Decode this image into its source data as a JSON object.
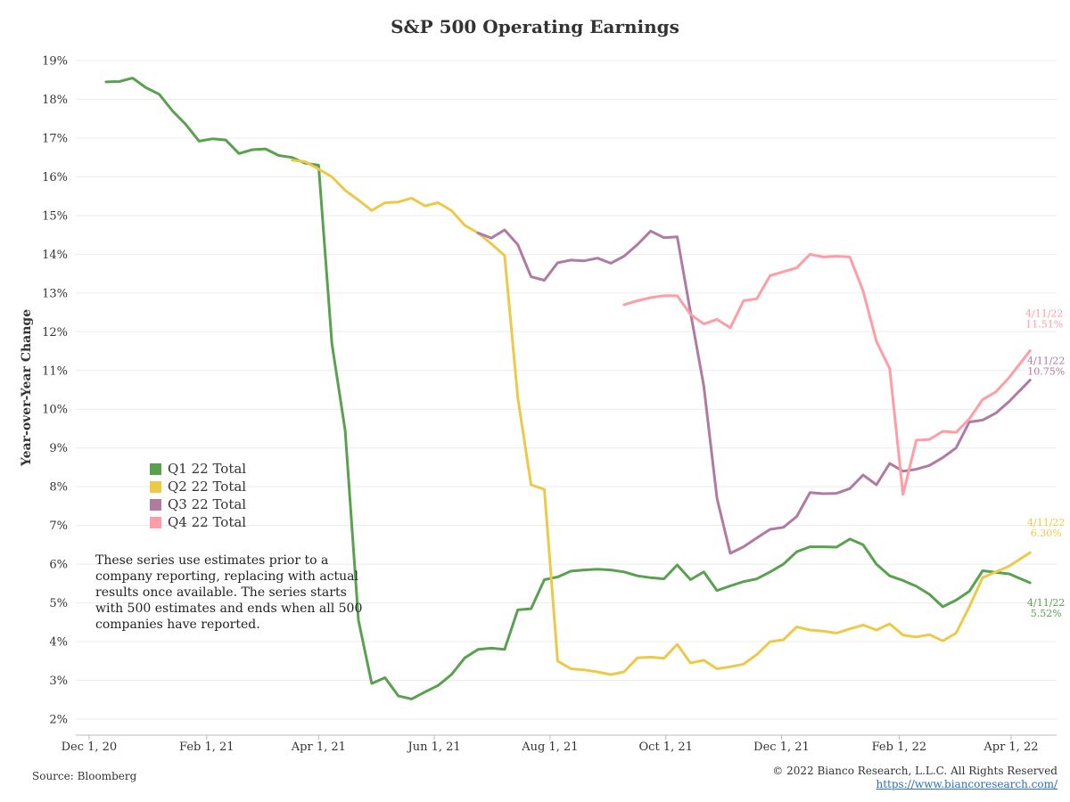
{
  "chart_data": {
    "type": "line",
    "title": "S&P 500 Operating Earnings",
    "ylabel": "Year-over-Year Change",
    "xlabel": "",
    "x_ticks": [
      "Dec 1, 20",
      "Feb 1, 21",
      "Apr 1, 21",
      "Jun 1, 21",
      "Aug 1, 21",
      "Oct 1, 21",
      "Dec 1, 21",
      "Feb 1, 22",
      "Apr 1, 22"
    ],
    "y_ticks": [
      "2%",
      "3%",
      "4%",
      "5%",
      "6%",
      "7%",
      "8%",
      "9%",
      "10%",
      "11%",
      "12%",
      "13%",
      "14%",
      "15%",
      "16%",
      "17%",
      "18%",
      "19%"
    ],
    "ylim": [
      2,
      19
    ],
    "xlim": [
      "2020-11-24",
      "2022-04-25"
    ],
    "grid": true,
    "legend_position": "middle-left",
    "series": [
      {
        "name": "Q1 22 Total",
        "color": "#59a14f",
        "points": [
          [
            "2020-12-10",
            18.45
          ],
          [
            "2020-12-17",
            18.46
          ],
          [
            "2020-12-24",
            18.55
          ],
          [
            "2020-12-31",
            18.3
          ],
          [
            "2021-01-07",
            18.13
          ],
          [
            "2021-01-14",
            17.7
          ],
          [
            "2021-01-21",
            17.35
          ],
          [
            "2021-01-28",
            16.92
          ],
          [
            "2021-02-04",
            16.98
          ],
          [
            "2021-02-11",
            16.95
          ],
          [
            "2021-02-18",
            16.6
          ],
          [
            "2021-02-25",
            16.7
          ],
          [
            "2021-03-04",
            16.72
          ],
          [
            "2021-03-11",
            16.55
          ],
          [
            "2021-03-18",
            16.5
          ],
          [
            "2021-03-25",
            16.35
          ],
          [
            "2021-04-01",
            16.3
          ],
          [
            "2021-04-08",
            11.7
          ],
          [
            "2021-04-15",
            9.45
          ],
          [
            "2021-04-22",
            4.55
          ],
          [
            "2021-04-29",
            2.92
          ],
          [
            "2021-05-06",
            3.07
          ],
          [
            "2021-05-13",
            2.6
          ],
          [
            "2021-05-20",
            2.52
          ],
          [
            "2021-05-27",
            2.7
          ],
          [
            "2021-06-03",
            2.87
          ],
          [
            "2021-06-10",
            3.15
          ],
          [
            "2021-06-17",
            3.58
          ],
          [
            "2021-06-24",
            3.8
          ],
          [
            "2021-07-01",
            3.83
          ],
          [
            "2021-07-08",
            3.8
          ],
          [
            "2021-07-15",
            4.82
          ],
          [
            "2021-07-22",
            4.85
          ],
          [
            "2021-07-29",
            5.6
          ],
          [
            "2021-08-05",
            5.67
          ],
          [
            "2021-08-12",
            5.82
          ],
          [
            "2021-08-19",
            5.85
          ],
          [
            "2021-08-26",
            5.87
          ],
          [
            "2021-09-02",
            5.85
          ],
          [
            "2021-09-09",
            5.8
          ],
          [
            "2021-09-16",
            5.7
          ],
          [
            "2021-09-23",
            5.65
          ],
          [
            "2021-09-30",
            5.62
          ],
          [
            "2021-10-07",
            5.98
          ],
          [
            "2021-10-14",
            5.6
          ],
          [
            "2021-10-21",
            5.8
          ],
          [
            "2021-10-28",
            5.32
          ],
          [
            "2021-11-04",
            5.44
          ],
          [
            "2021-11-11",
            5.55
          ],
          [
            "2021-11-18",
            5.62
          ],
          [
            "2021-11-25",
            5.8
          ],
          [
            "2021-12-02",
            6.0
          ],
          [
            "2021-12-09",
            6.32
          ],
          [
            "2021-12-16",
            6.45
          ],
          [
            "2021-12-23",
            6.45
          ],
          [
            "2021-12-30",
            6.44
          ],
          [
            "2022-01-06",
            6.65
          ],
          [
            "2022-01-13",
            6.5
          ],
          [
            "2022-01-20",
            6.0
          ],
          [
            "2022-01-27",
            5.7
          ],
          [
            "2022-02-03",
            5.58
          ],
          [
            "2022-02-10",
            5.43
          ],
          [
            "2022-02-17",
            5.22
          ],
          [
            "2022-02-24",
            4.9
          ],
          [
            "2022-03-03",
            5.07
          ],
          [
            "2022-03-10",
            5.3
          ],
          [
            "2022-03-17",
            5.83
          ],
          [
            "2022-03-24",
            5.79
          ],
          [
            "2022-03-31",
            5.75
          ],
          [
            "2022-04-11",
            5.52
          ]
        ],
        "end_label": {
          "date": "4/11/22",
          "value": "5.52%"
        }
      },
      {
        "name": "Q2 22 Total",
        "color": "#edc948",
        "points": [
          [
            "2021-03-18",
            16.43
          ],
          [
            "2021-03-25",
            16.39
          ],
          [
            "2021-04-01",
            16.2
          ],
          [
            "2021-04-08",
            16.0
          ],
          [
            "2021-04-15",
            15.65
          ],
          [
            "2021-04-22",
            15.4
          ],
          [
            "2021-04-29",
            15.13
          ],
          [
            "2021-05-06",
            15.33
          ],
          [
            "2021-05-13",
            15.35
          ],
          [
            "2021-05-20",
            15.45
          ],
          [
            "2021-05-27",
            15.25
          ],
          [
            "2021-06-03",
            15.33
          ],
          [
            "2021-06-10",
            15.13
          ],
          [
            "2021-06-17",
            14.75
          ],
          [
            "2021-06-24",
            14.55
          ],
          [
            "2021-07-01",
            14.27
          ],
          [
            "2021-07-08",
            13.97
          ],
          [
            "2021-07-15",
            10.3
          ],
          [
            "2021-07-22",
            8.05
          ],
          [
            "2021-07-29",
            7.93
          ],
          [
            "2021-08-05",
            3.5
          ],
          [
            "2021-08-12",
            3.3
          ],
          [
            "2021-08-19",
            3.27
          ],
          [
            "2021-08-26",
            3.22
          ],
          [
            "2021-09-02",
            3.15
          ],
          [
            "2021-09-09",
            3.22
          ],
          [
            "2021-09-16",
            3.58
          ],
          [
            "2021-09-23",
            3.6
          ],
          [
            "2021-09-30",
            3.57
          ],
          [
            "2021-10-07",
            3.93
          ],
          [
            "2021-10-14",
            3.45
          ],
          [
            "2021-10-21",
            3.52
          ],
          [
            "2021-10-28",
            3.3
          ],
          [
            "2021-11-04",
            3.35
          ],
          [
            "2021-11-11",
            3.42
          ],
          [
            "2021-11-18",
            3.67
          ],
          [
            "2021-11-25",
            4.0
          ],
          [
            "2021-12-02",
            4.05
          ],
          [
            "2021-12-09",
            4.38
          ],
          [
            "2021-12-16",
            4.3
          ],
          [
            "2021-12-23",
            4.27
          ],
          [
            "2021-12-30",
            4.22
          ],
          [
            "2022-01-06",
            4.33
          ],
          [
            "2022-01-13",
            4.43
          ],
          [
            "2022-01-20",
            4.3
          ],
          [
            "2022-01-27",
            4.46
          ],
          [
            "2022-02-03",
            4.17
          ],
          [
            "2022-02-10",
            4.12
          ],
          [
            "2022-02-17",
            4.18
          ],
          [
            "2022-02-24",
            4.02
          ],
          [
            "2022-03-03",
            4.22
          ],
          [
            "2022-03-10",
            4.9
          ],
          [
            "2022-03-17",
            5.65
          ],
          [
            "2022-03-24",
            5.8
          ],
          [
            "2022-03-31",
            5.95
          ],
          [
            "2022-04-11",
            6.3
          ]
        ],
        "end_label": {
          "date": "4/11/22",
          "value": "6.30%"
        }
      },
      {
        "name": "Q3 22 Total",
        "color": "#b07aa1",
        "points": [
          [
            "2021-06-24",
            14.55
          ],
          [
            "2021-07-01",
            14.42
          ],
          [
            "2021-07-08",
            14.63
          ],
          [
            "2021-07-15",
            14.25
          ],
          [
            "2021-07-22",
            13.42
          ],
          [
            "2021-07-29",
            13.33
          ],
          [
            "2021-08-05",
            13.78
          ],
          [
            "2021-08-12",
            13.85
          ],
          [
            "2021-08-19",
            13.83
          ],
          [
            "2021-08-26",
            13.9
          ],
          [
            "2021-09-02",
            13.77
          ],
          [
            "2021-09-09",
            13.95
          ],
          [
            "2021-09-16",
            14.25
          ],
          [
            "2021-09-23",
            14.6
          ],
          [
            "2021-09-30",
            14.43
          ],
          [
            "2021-10-07",
            14.45
          ],
          [
            "2021-10-14",
            12.5
          ],
          [
            "2021-10-21",
            10.6
          ],
          [
            "2021-10-28",
            7.7
          ],
          [
            "2021-11-04",
            6.28
          ],
          [
            "2021-11-11",
            6.45
          ],
          [
            "2021-11-18",
            6.68
          ],
          [
            "2021-11-25",
            6.9
          ],
          [
            "2021-12-02",
            6.95
          ],
          [
            "2021-12-09",
            7.23
          ],
          [
            "2021-12-16",
            7.85
          ],
          [
            "2021-12-23",
            7.82
          ],
          [
            "2021-12-30",
            7.83
          ],
          [
            "2022-01-06",
            7.95
          ],
          [
            "2022-01-13",
            8.3
          ],
          [
            "2022-01-20",
            8.05
          ],
          [
            "2022-01-27",
            8.6
          ],
          [
            "2022-02-03",
            8.4
          ],
          [
            "2022-02-10",
            8.45
          ],
          [
            "2022-02-17",
            8.55
          ],
          [
            "2022-02-24",
            8.75
          ],
          [
            "2022-03-03",
            9.0
          ],
          [
            "2022-03-10",
            9.67
          ],
          [
            "2022-03-17",
            9.72
          ],
          [
            "2022-03-24",
            9.9
          ],
          [
            "2022-03-31",
            10.2
          ],
          [
            "2022-04-11",
            10.75
          ]
        ],
        "end_label": {
          "date": "4/11/22",
          "value": "10.75%"
        }
      },
      {
        "name": "Q4 22 Total",
        "color": "#ff9da7",
        "points": [
          [
            "2021-09-09",
            12.7
          ],
          [
            "2021-09-16",
            12.8
          ],
          [
            "2021-09-23",
            12.88
          ],
          [
            "2021-09-30",
            12.93
          ],
          [
            "2021-10-07",
            12.93
          ],
          [
            "2021-10-14",
            12.45
          ],
          [
            "2021-10-21",
            12.2
          ],
          [
            "2021-10-28",
            12.32
          ],
          [
            "2021-11-04",
            12.1
          ],
          [
            "2021-11-11",
            12.8
          ],
          [
            "2021-11-18",
            12.85
          ],
          [
            "2021-11-25",
            13.45
          ],
          [
            "2021-12-02",
            13.55
          ],
          [
            "2021-12-09",
            13.65
          ],
          [
            "2021-12-16",
            14.0
          ],
          [
            "2021-12-23",
            13.93
          ],
          [
            "2021-12-30",
            13.95
          ],
          [
            "2022-01-06",
            13.93
          ],
          [
            "2022-01-13",
            13.05
          ],
          [
            "2022-01-20",
            11.75
          ],
          [
            "2022-01-27",
            11.05
          ],
          [
            "2022-02-03",
            7.8
          ],
          [
            "2022-02-10",
            9.2
          ],
          [
            "2022-02-17",
            9.22
          ],
          [
            "2022-02-24",
            9.43
          ],
          [
            "2022-03-03",
            9.4
          ],
          [
            "2022-03-10",
            9.75
          ],
          [
            "2022-03-17",
            10.25
          ],
          [
            "2022-03-24",
            10.45
          ],
          [
            "2022-03-31",
            10.82
          ],
          [
            "2022-04-11",
            11.51
          ]
        ],
        "end_label": {
          "date": "4/11/22",
          "value": "11.51%"
        }
      }
    ]
  },
  "legend": {
    "items": [
      {
        "label": "Q1 22 Total",
        "color": "#59a14f"
      },
      {
        "label": "Q2 22 Total",
        "color": "#edc948"
      },
      {
        "label": "Q3 22 Total",
        "color": "#b07aa1"
      },
      {
        "label": "Q4 22 Total",
        "color": "#ff9da7"
      }
    ]
  },
  "note": "These series use estimates prior to a company reporting, replacing with actual results once available. The series starts with 500 estimates and ends when all 500 companies have reported.",
  "footer": {
    "source": "Source: Bloomberg",
    "copyright": "© 2022 Bianco Research, L.L.C. All Rights Reserved",
    "url": "https://www.biancoresearch.com/"
  }
}
